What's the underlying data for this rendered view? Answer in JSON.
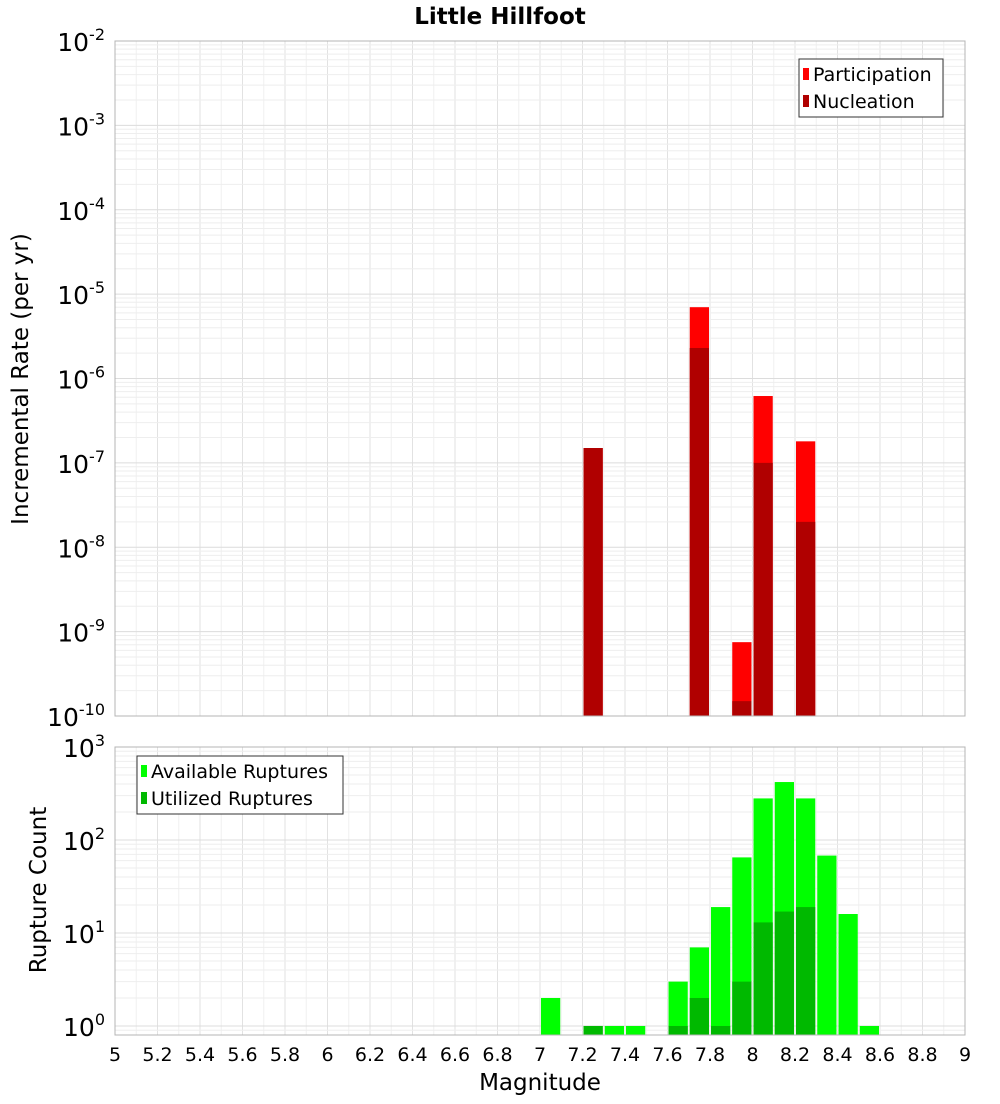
{
  "chart_data": [
    {
      "id": "top",
      "type": "bar",
      "title": "Little Hillfoot",
      "xlabel": "",
      "ylabel": "Incremental Rate (per yr)",
      "yscale": "log",
      "ylim": [
        1e-10,
        0.01
      ],
      "xlim": [
        5,
        9
      ],
      "grid": true,
      "legend_position": "top-right",
      "y_ticks": [
        {
          "mantissa": "10",
          "exponent": "-10",
          "value": 1e-10
        },
        {
          "mantissa": "10",
          "exponent": "-9",
          "value": 1e-09
        },
        {
          "mantissa": "10",
          "exponent": "-8",
          "value": 1e-08
        },
        {
          "mantissa": "10",
          "exponent": "-7",
          "value": 1e-07
        },
        {
          "mantissa": "10",
          "exponent": "-6",
          "value": 1e-06
        },
        {
          "mantissa": "10",
          "exponent": "-5",
          "value": 1e-05
        },
        {
          "mantissa": "10",
          "exponent": "-4",
          "value": 0.0001
        },
        {
          "mantissa": "10",
          "exponent": "-3",
          "value": 0.001
        },
        {
          "mantissa": "10",
          "exponent": "-2",
          "value": 0.01
        }
      ],
      "series": [
        {
          "name": "Participation",
          "color": "#ff0000",
          "points": [
            [
              7.25,
              1.5e-07
            ],
            [
              7.75,
              7e-06
            ],
            [
              7.95,
              7.5e-10
            ],
            [
              8.05,
              6.2e-07
            ],
            [
              8.25,
              1.8e-07
            ]
          ]
        },
        {
          "name": "Nucleation",
          "color": "#b00000",
          "points": [
            [
              7.25,
              1.5e-07
            ],
            [
              7.75,
              2.3e-06
            ],
            [
              7.95,
              1.5e-10
            ],
            [
              8.05,
              1e-07
            ],
            [
              8.25,
              2e-08
            ]
          ]
        }
      ]
    },
    {
      "id": "bottom",
      "type": "bar",
      "title": "",
      "xlabel": "Magnitude",
      "ylabel": "Rupture Count",
      "yscale": "log",
      "ylim": [
        0.8,
        1000
      ],
      "xlim": [
        5,
        9
      ],
      "grid": true,
      "legend_position": "top-left",
      "x_ticks": [
        "5",
        "5.2",
        "5.4",
        "5.6",
        "5.8",
        "6",
        "6.2",
        "6.4",
        "6.6",
        "6.8",
        "7",
        "7.2",
        "7.4",
        "7.6",
        "7.8",
        "8",
        "8.2",
        "8.4",
        "8.6",
        "8.8",
        "9"
      ],
      "y_ticks": [
        {
          "mantissa": "10",
          "exponent": "0",
          "value": 1
        },
        {
          "mantissa": "10",
          "exponent": "1",
          "value": 10
        },
        {
          "mantissa": "10",
          "exponent": "2",
          "value": 100
        },
        {
          "mantissa": "10",
          "exponent": "3",
          "value": 1000
        }
      ],
      "series": [
        {
          "name": "Available Ruptures",
          "color": "#00ff00",
          "points": [
            [
              7.05,
              2
            ],
            [
              7.25,
              1
            ],
            [
              7.35,
              1
            ],
            [
              7.45,
              1
            ],
            [
              7.65,
              3
            ],
            [
              7.75,
              7
            ],
            [
              7.85,
              19
            ],
            [
              7.95,
              65
            ],
            [
              8.05,
              280
            ],
            [
              8.15,
              420
            ],
            [
              8.25,
              280
            ],
            [
              8.35,
              68
            ],
            [
              8.45,
              16
            ],
            [
              8.55,
              1
            ]
          ]
        },
        {
          "name": "Utilized Ruptures",
          "color": "#00b900",
          "points": [
            [
              7.25,
              1
            ],
            [
              7.65,
              1
            ],
            [
              7.75,
              2
            ],
            [
              7.85,
              1
            ],
            [
              7.95,
              3
            ],
            [
              8.05,
              13
            ],
            [
              8.15,
              17
            ],
            [
              8.25,
              19
            ]
          ]
        }
      ]
    }
  ]
}
